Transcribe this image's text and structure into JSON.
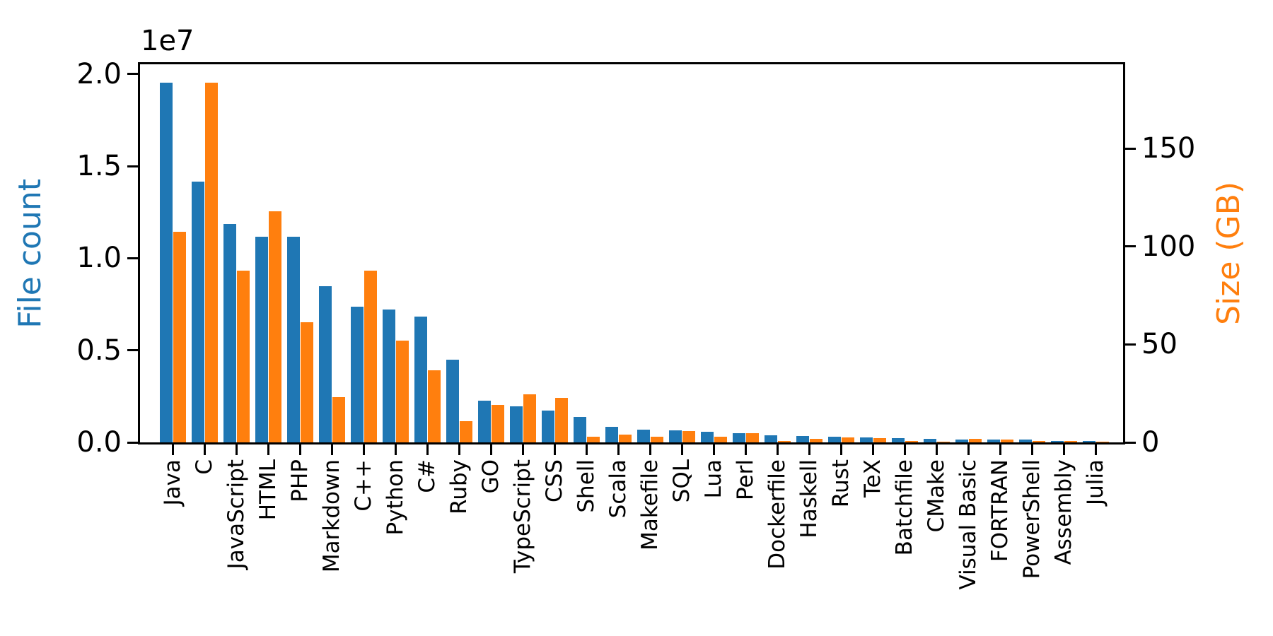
{
  "chart_data": {
    "type": "bar",
    "title": "",
    "xlabel": "",
    "ylabel_left": "File count",
    "ylabel_right": "Size (GB)",
    "offset_text": "1e7",
    "categories": [
      "Java",
      "C",
      "JavaScript",
      "HTML",
      "PHP",
      "Markdown",
      "C++",
      "Python",
      "C#",
      "Ruby",
      "GO",
      "TypeScript",
      "CSS",
      "Shell",
      "Scala",
      "Makefile",
      "SQL",
      "Lua",
      "Perl",
      "Dockerfile",
      "Haskell",
      "Rust",
      "TeX",
      "Batchfile",
      "CMake",
      "Visual Basic",
      "FORTRAN",
      "PowerShell",
      "Assembly",
      "Julia"
    ],
    "series": [
      {
        "name": "File count",
        "axis": "left",
        "color": "#1f77b4",
        "values": [
          19548190,
          14143113,
          11839883,
          11178557,
          11177610,
          8464626,
          7380520,
          7226626,
          6811652,
          4473331,
          2265436,
          1940406,
          1734406,
          1385648,
          835755,
          679430,
          656671,
          578554,
          497949,
          366505,
          340623,
          322431,
          251015,
          236945,
          175282,
          155652,
          142038,
          136846,
          82905,
          58317
        ]
      },
      {
        "name": "Size (GB)",
        "axis": "right",
        "color": "#ff7f0e",
        "values": [
          107.7,
          183.83,
          87.82,
          118.12,
          61.41,
          23.09,
          87.73,
          52.03,
          36.83,
          10.95,
          19.28,
          24.59,
          22.67,
          3.01,
          3.87,
          2.92,
          5.67,
          2.81,
          4.7,
          0.71,
          1.85,
          2.68,
          2.15,
          0.7,
          0.54,
          1.91,
          1.62,
          0.69,
          0.78,
          0.29
        ]
      }
    ],
    "ylim_left": [
      0,
      20526000
    ],
    "ylim_right": [
      0,
      193.1
    ],
    "left_tick_labels": [
      "0.0",
      "0.5",
      "1.0",
      "1.5",
      "2.0"
    ],
    "left_tick_values": [
      0,
      5000000,
      10000000,
      15000000,
      20000000
    ],
    "right_tick_labels": [
      "0",
      "50",
      "100",
      "150"
    ],
    "right_tick_values": [
      0,
      50,
      100,
      150
    ],
    "bar_width_fraction": 0.4,
    "grid": false,
    "legend": "none"
  }
}
